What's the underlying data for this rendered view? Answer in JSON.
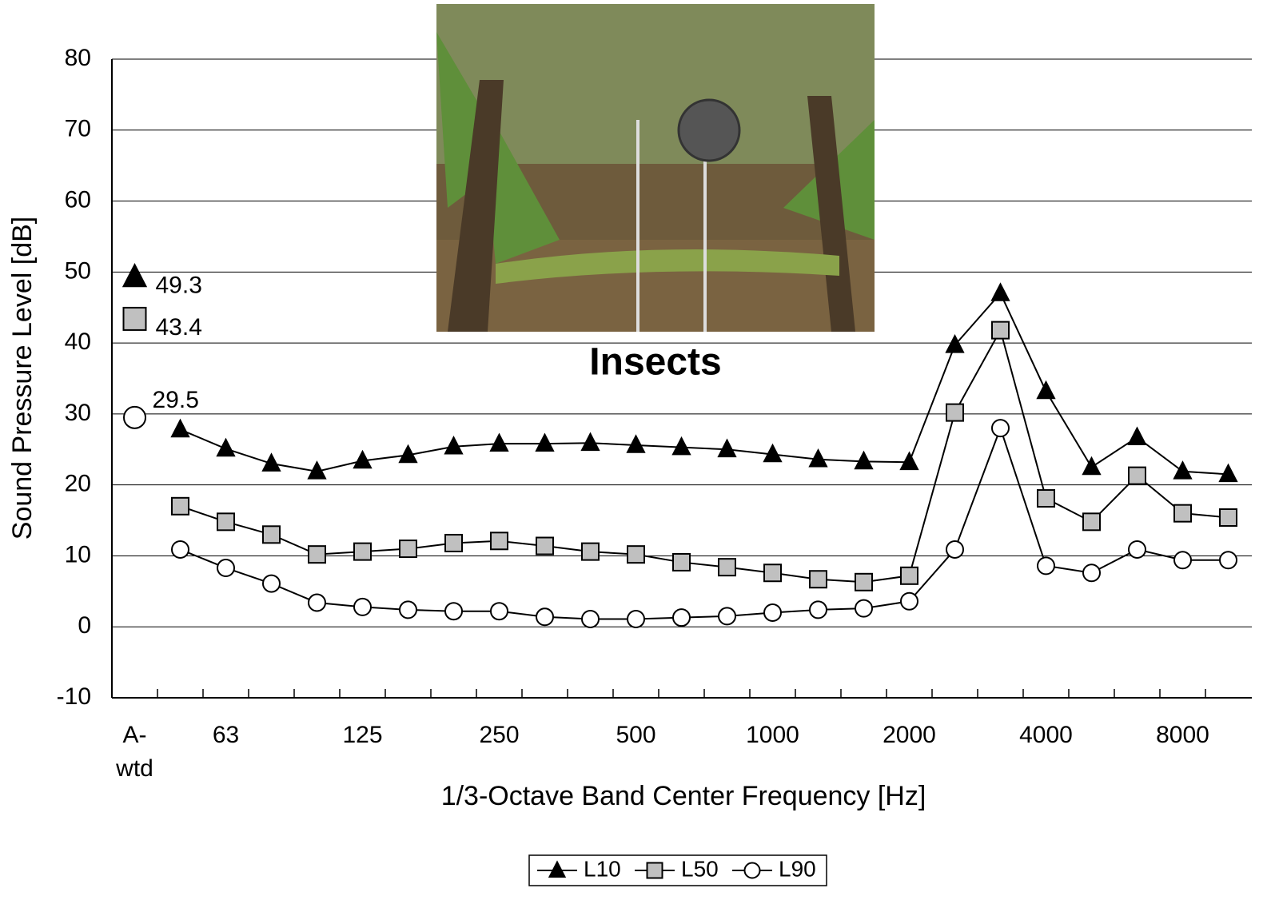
{
  "chart_data": {
    "type": "line",
    "annotation": "Insects",
    "x_label": "1/3-Octave Band Center Frequency [Hz]",
    "y_label": "Sound Pressure Level [dB]",
    "categories": [
      "A- wtd",
      null,
      "63",
      null,
      null,
      "125",
      null,
      null,
      "250",
      null,
      null,
      "500",
      null,
      null,
      "1000",
      null,
      null,
      "2000",
      null,
      null,
      "4000",
      null,
      null,
      "8000",
      null
    ],
    "series": [
      {
        "name": "L10",
        "color": "#000000",
        "marker": "triangle",
        "values": [
          49.3,
          27.8,
          25.1,
          23.0,
          21.9,
          23.4,
          24.2,
          25.4,
          25.8,
          25.8,
          25.9,
          25.6,
          25.3,
          25.0,
          24.3,
          23.6,
          23.3,
          23.2,
          39.7,
          47.0,
          33.2,
          22.5,
          26.7,
          21.9,
          21.5
        ]
      },
      {
        "name": "L50",
        "color": "#c0c0c0",
        "marker": "square",
        "values": [
          43.4,
          17.0,
          14.8,
          13.0,
          10.2,
          10.6,
          11.0,
          11.8,
          12.1,
          11.4,
          10.6,
          10.2,
          9.1,
          8.4,
          7.6,
          6.7,
          6.3,
          7.2,
          30.2,
          41.8,
          18.1,
          14.8,
          21.3,
          16.0,
          15.4
        ]
      },
      {
        "name": "L90",
        "color": "#ffffff",
        "marker": "circle",
        "values": [
          29.5,
          10.9,
          8.3,
          6.1,
          3.4,
          2.8,
          2.4,
          2.2,
          2.2,
          1.4,
          1.1,
          1.1,
          1.3,
          1.5,
          2.0,
          2.4,
          2.6,
          3.6,
          10.9,
          28.0,
          8.6,
          7.6,
          10.9,
          9.4,
          9.4
        ]
      }
    ],
    "ylim": [
      -10,
      80
    ],
    "yticks": [
      -10,
      0,
      10,
      20,
      30,
      40,
      50,
      60,
      70,
      80
    ],
    "grid": true,
    "legend": "bottom"
  }
}
